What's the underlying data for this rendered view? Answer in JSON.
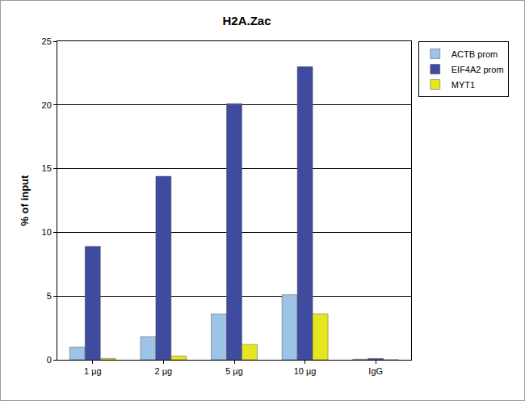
{
  "chart_data": {
    "type": "bar",
    "title": "H2A.Zac",
    "y_label": "% of input",
    "categories": [
      "1 µg",
      "2 µg",
      "5 µg",
      "10 µg",
      "IgG"
    ],
    "series": [
      {
        "name": "ACTB prom",
        "color": "#9dc3e6",
        "values": [
          1.0,
          1.8,
          3.6,
          5.1,
          0.05
        ]
      },
      {
        "name": "EIF4A2 prom",
        "color": "#3f4b9e",
        "values": [
          8.9,
          14.4,
          20.1,
          23.0,
          0.1
        ]
      },
      {
        "name": "MYT1",
        "color": "#e6e620",
        "values": [
          0.1,
          0.3,
          1.2,
          3.6,
          0.0
        ]
      }
    ],
    "ylim": [
      0,
      25
    ],
    "yticks": [
      0,
      5,
      10,
      15,
      20,
      25
    ],
    "grid": true,
    "legend": "right"
  }
}
